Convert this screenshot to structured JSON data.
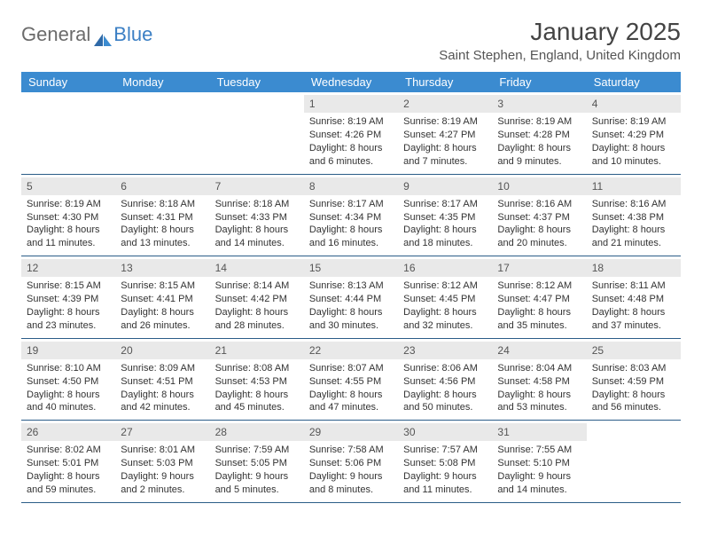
{
  "logo": {
    "part1": "General",
    "part2": "Blue"
  },
  "title": "January 2025",
  "location": "Saint Stephen, England, United Kingdom",
  "colors": {
    "header_bg": "#3b8bd0",
    "header_text": "#ffffff",
    "daynum_bg": "#e9e9e9",
    "week_divider": "#2b5d88",
    "logo_accent": "#3b7fc4",
    "text": "#333333"
  },
  "dayNames": [
    "Sunday",
    "Monday",
    "Tuesday",
    "Wednesday",
    "Thursday",
    "Friday",
    "Saturday"
  ],
  "weeks": [
    [
      {
        "blank": true
      },
      {
        "blank": true
      },
      {
        "blank": true
      },
      {
        "n": "1",
        "sr": "Sunrise: 8:19 AM",
        "ss": "Sunset: 4:26 PM",
        "dl": "Daylight: 8 hours and 6 minutes."
      },
      {
        "n": "2",
        "sr": "Sunrise: 8:19 AM",
        "ss": "Sunset: 4:27 PM",
        "dl": "Daylight: 8 hours and 7 minutes."
      },
      {
        "n": "3",
        "sr": "Sunrise: 8:19 AM",
        "ss": "Sunset: 4:28 PM",
        "dl": "Daylight: 8 hours and 9 minutes."
      },
      {
        "n": "4",
        "sr": "Sunrise: 8:19 AM",
        "ss": "Sunset: 4:29 PM",
        "dl": "Daylight: 8 hours and 10 minutes."
      }
    ],
    [
      {
        "n": "5",
        "sr": "Sunrise: 8:19 AM",
        "ss": "Sunset: 4:30 PM",
        "dl": "Daylight: 8 hours and 11 minutes."
      },
      {
        "n": "6",
        "sr": "Sunrise: 8:18 AM",
        "ss": "Sunset: 4:31 PM",
        "dl": "Daylight: 8 hours and 13 minutes."
      },
      {
        "n": "7",
        "sr": "Sunrise: 8:18 AM",
        "ss": "Sunset: 4:33 PM",
        "dl": "Daylight: 8 hours and 14 minutes."
      },
      {
        "n": "8",
        "sr": "Sunrise: 8:17 AM",
        "ss": "Sunset: 4:34 PM",
        "dl": "Daylight: 8 hours and 16 minutes."
      },
      {
        "n": "9",
        "sr": "Sunrise: 8:17 AM",
        "ss": "Sunset: 4:35 PM",
        "dl": "Daylight: 8 hours and 18 minutes."
      },
      {
        "n": "10",
        "sr": "Sunrise: 8:16 AM",
        "ss": "Sunset: 4:37 PM",
        "dl": "Daylight: 8 hours and 20 minutes."
      },
      {
        "n": "11",
        "sr": "Sunrise: 8:16 AM",
        "ss": "Sunset: 4:38 PM",
        "dl": "Daylight: 8 hours and 21 minutes."
      }
    ],
    [
      {
        "n": "12",
        "sr": "Sunrise: 8:15 AM",
        "ss": "Sunset: 4:39 PM",
        "dl": "Daylight: 8 hours and 23 minutes."
      },
      {
        "n": "13",
        "sr": "Sunrise: 8:15 AM",
        "ss": "Sunset: 4:41 PM",
        "dl": "Daylight: 8 hours and 26 minutes."
      },
      {
        "n": "14",
        "sr": "Sunrise: 8:14 AM",
        "ss": "Sunset: 4:42 PM",
        "dl": "Daylight: 8 hours and 28 minutes."
      },
      {
        "n": "15",
        "sr": "Sunrise: 8:13 AM",
        "ss": "Sunset: 4:44 PM",
        "dl": "Daylight: 8 hours and 30 minutes."
      },
      {
        "n": "16",
        "sr": "Sunrise: 8:12 AM",
        "ss": "Sunset: 4:45 PM",
        "dl": "Daylight: 8 hours and 32 minutes."
      },
      {
        "n": "17",
        "sr": "Sunrise: 8:12 AM",
        "ss": "Sunset: 4:47 PM",
        "dl": "Daylight: 8 hours and 35 minutes."
      },
      {
        "n": "18",
        "sr": "Sunrise: 8:11 AM",
        "ss": "Sunset: 4:48 PM",
        "dl": "Daylight: 8 hours and 37 minutes."
      }
    ],
    [
      {
        "n": "19",
        "sr": "Sunrise: 8:10 AM",
        "ss": "Sunset: 4:50 PM",
        "dl": "Daylight: 8 hours and 40 minutes."
      },
      {
        "n": "20",
        "sr": "Sunrise: 8:09 AM",
        "ss": "Sunset: 4:51 PM",
        "dl": "Daylight: 8 hours and 42 minutes."
      },
      {
        "n": "21",
        "sr": "Sunrise: 8:08 AM",
        "ss": "Sunset: 4:53 PM",
        "dl": "Daylight: 8 hours and 45 minutes."
      },
      {
        "n": "22",
        "sr": "Sunrise: 8:07 AM",
        "ss": "Sunset: 4:55 PM",
        "dl": "Daylight: 8 hours and 47 minutes."
      },
      {
        "n": "23",
        "sr": "Sunrise: 8:06 AM",
        "ss": "Sunset: 4:56 PM",
        "dl": "Daylight: 8 hours and 50 minutes."
      },
      {
        "n": "24",
        "sr": "Sunrise: 8:04 AM",
        "ss": "Sunset: 4:58 PM",
        "dl": "Daylight: 8 hours and 53 minutes."
      },
      {
        "n": "25",
        "sr": "Sunrise: 8:03 AM",
        "ss": "Sunset: 4:59 PM",
        "dl": "Daylight: 8 hours and 56 minutes."
      }
    ],
    [
      {
        "n": "26",
        "sr": "Sunrise: 8:02 AM",
        "ss": "Sunset: 5:01 PM",
        "dl": "Daylight: 8 hours and 59 minutes."
      },
      {
        "n": "27",
        "sr": "Sunrise: 8:01 AM",
        "ss": "Sunset: 5:03 PM",
        "dl": "Daylight: 9 hours and 2 minutes."
      },
      {
        "n": "28",
        "sr": "Sunrise: 7:59 AM",
        "ss": "Sunset: 5:05 PM",
        "dl": "Daylight: 9 hours and 5 minutes."
      },
      {
        "n": "29",
        "sr": "Sunrise: 7:58 AM",
        "ss": "Sunset: 5:06 PM",
        "dl": "Daylight: 9 hours and 8 minutes."
      },
      {
        "n": "30",
        "sr": "Sunrise: 7:57 AM",
        "ss": "Sunset: 5:08 PM",
        "dl": "Daylight: 9 hours and 11 minutes."
      },
      {
        "n": "31",
        "sr": "Sunrise: 7:55 AM",
        "ss": "Sunset: 5:10 PM",
        "dl": "Daylight: 9 hours and 14 minutes."
      },
      {
        "blank": true
      }
    ]
  ]
}
